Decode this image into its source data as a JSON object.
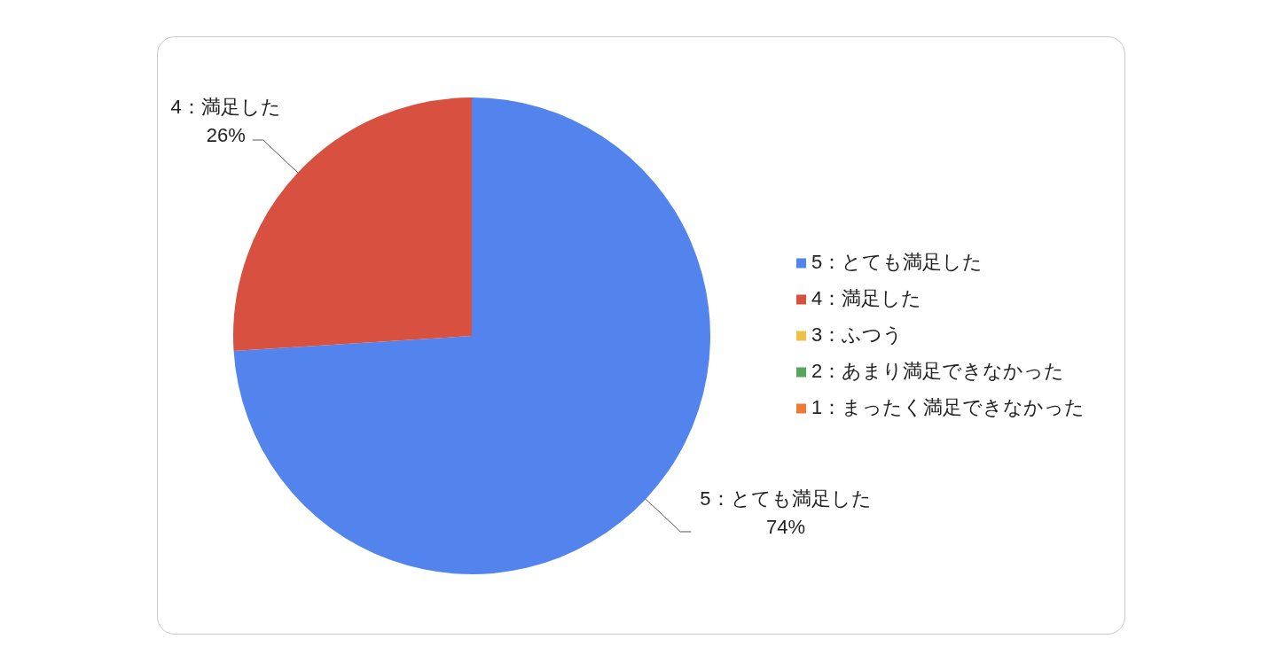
{
  "chart_data": {
    "type": "pie",
    "categories": [
      "5：とても満足した",
      "4：満足した",
      "3：ふつう",
      "2：あまり満足できなかった",
      "1：まったく満足できなかった"
    ],
    "values": [
      74,
      26,
      0,
      0,
      0
    ],
    "colors": [
      "#5383ec",
      "#d85140",
      "#f1bf42",
      "#58a55c",
      "#ef7a35"
    ],
    "value_labels": [
      "74%",
      "26%",
      null,
      null,
      null
    ],
    "legend": "right"
  }
}
